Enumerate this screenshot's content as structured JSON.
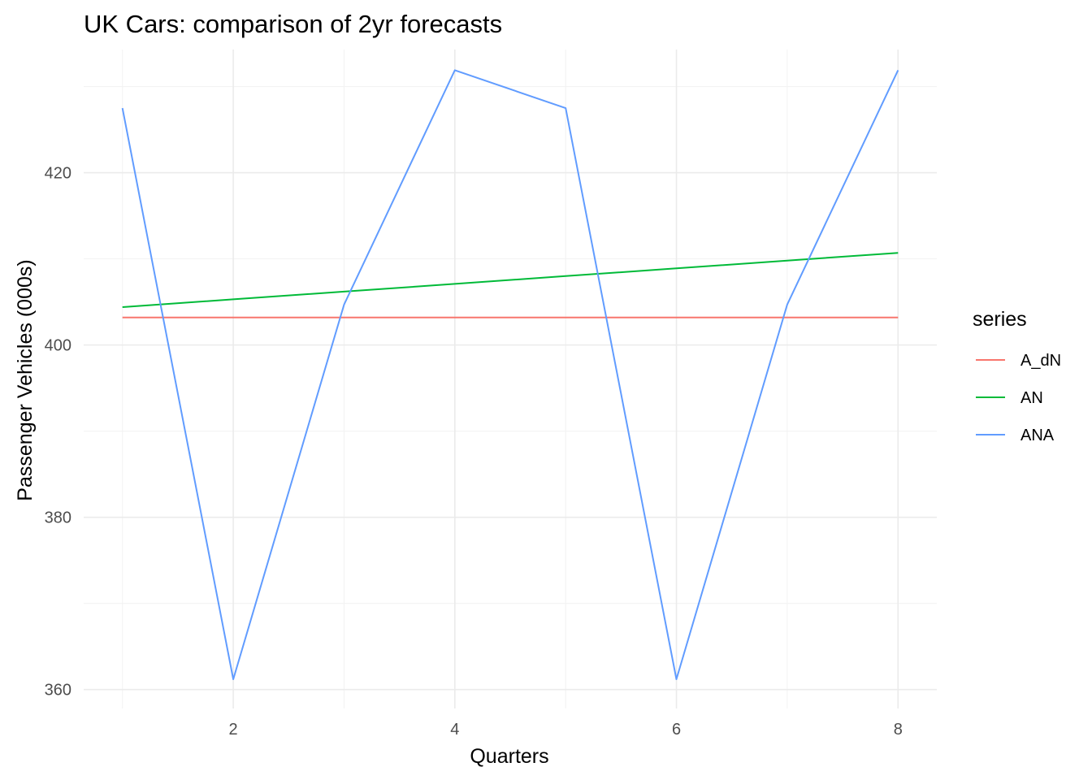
{
  "chart_data": {
    "type": "line",
    "title": "UK Cars: comparison of 2yr forecasts",
    "xlabel": "Quarters",
    "ylabel": "Passenger Vehicles (000s)",
    "xlim": [
      0.65,
      8.35
    ],
    "ylim": [
      357.8,
      434.3
    ],
    "x_ticks": [
      2,
      4,
      6,
      8
    ],
    "y_ticks": [
      360,
      380,
      400,
      420
    ],
    "grid": true,
    "legend": {
      "title": "series",
      "placement": "right"
    },
    "x": [
      1,
      2,
      3,
      4,
      5,
      6,
      7,
      8
    ],
    "series": [
      {
        "name": "A_dN",
        "color": "#F8766D",
        "values": [
          403.2,
          403.2,
          403.2,
          403.2,
          403.2,
          403.2,
          403.2,
          403.2
        ]
      },
      {
        "name": "AN",
        "color": "#00BA38",
        "values": [
          404.4,
          405.3,
          406.2,
          407.1,
          408.0,
          408.9,
          409.8,
          410.7
        ]
      },
      {
        "name": "ANA",
        "color": "#619CFF",
        "values": [
          427.5,
          361.2,
          404.7,
          431.9,
          427.5,
          361.2,
          404.7,
          431.9
        ]
      }
    ]
  }
}
